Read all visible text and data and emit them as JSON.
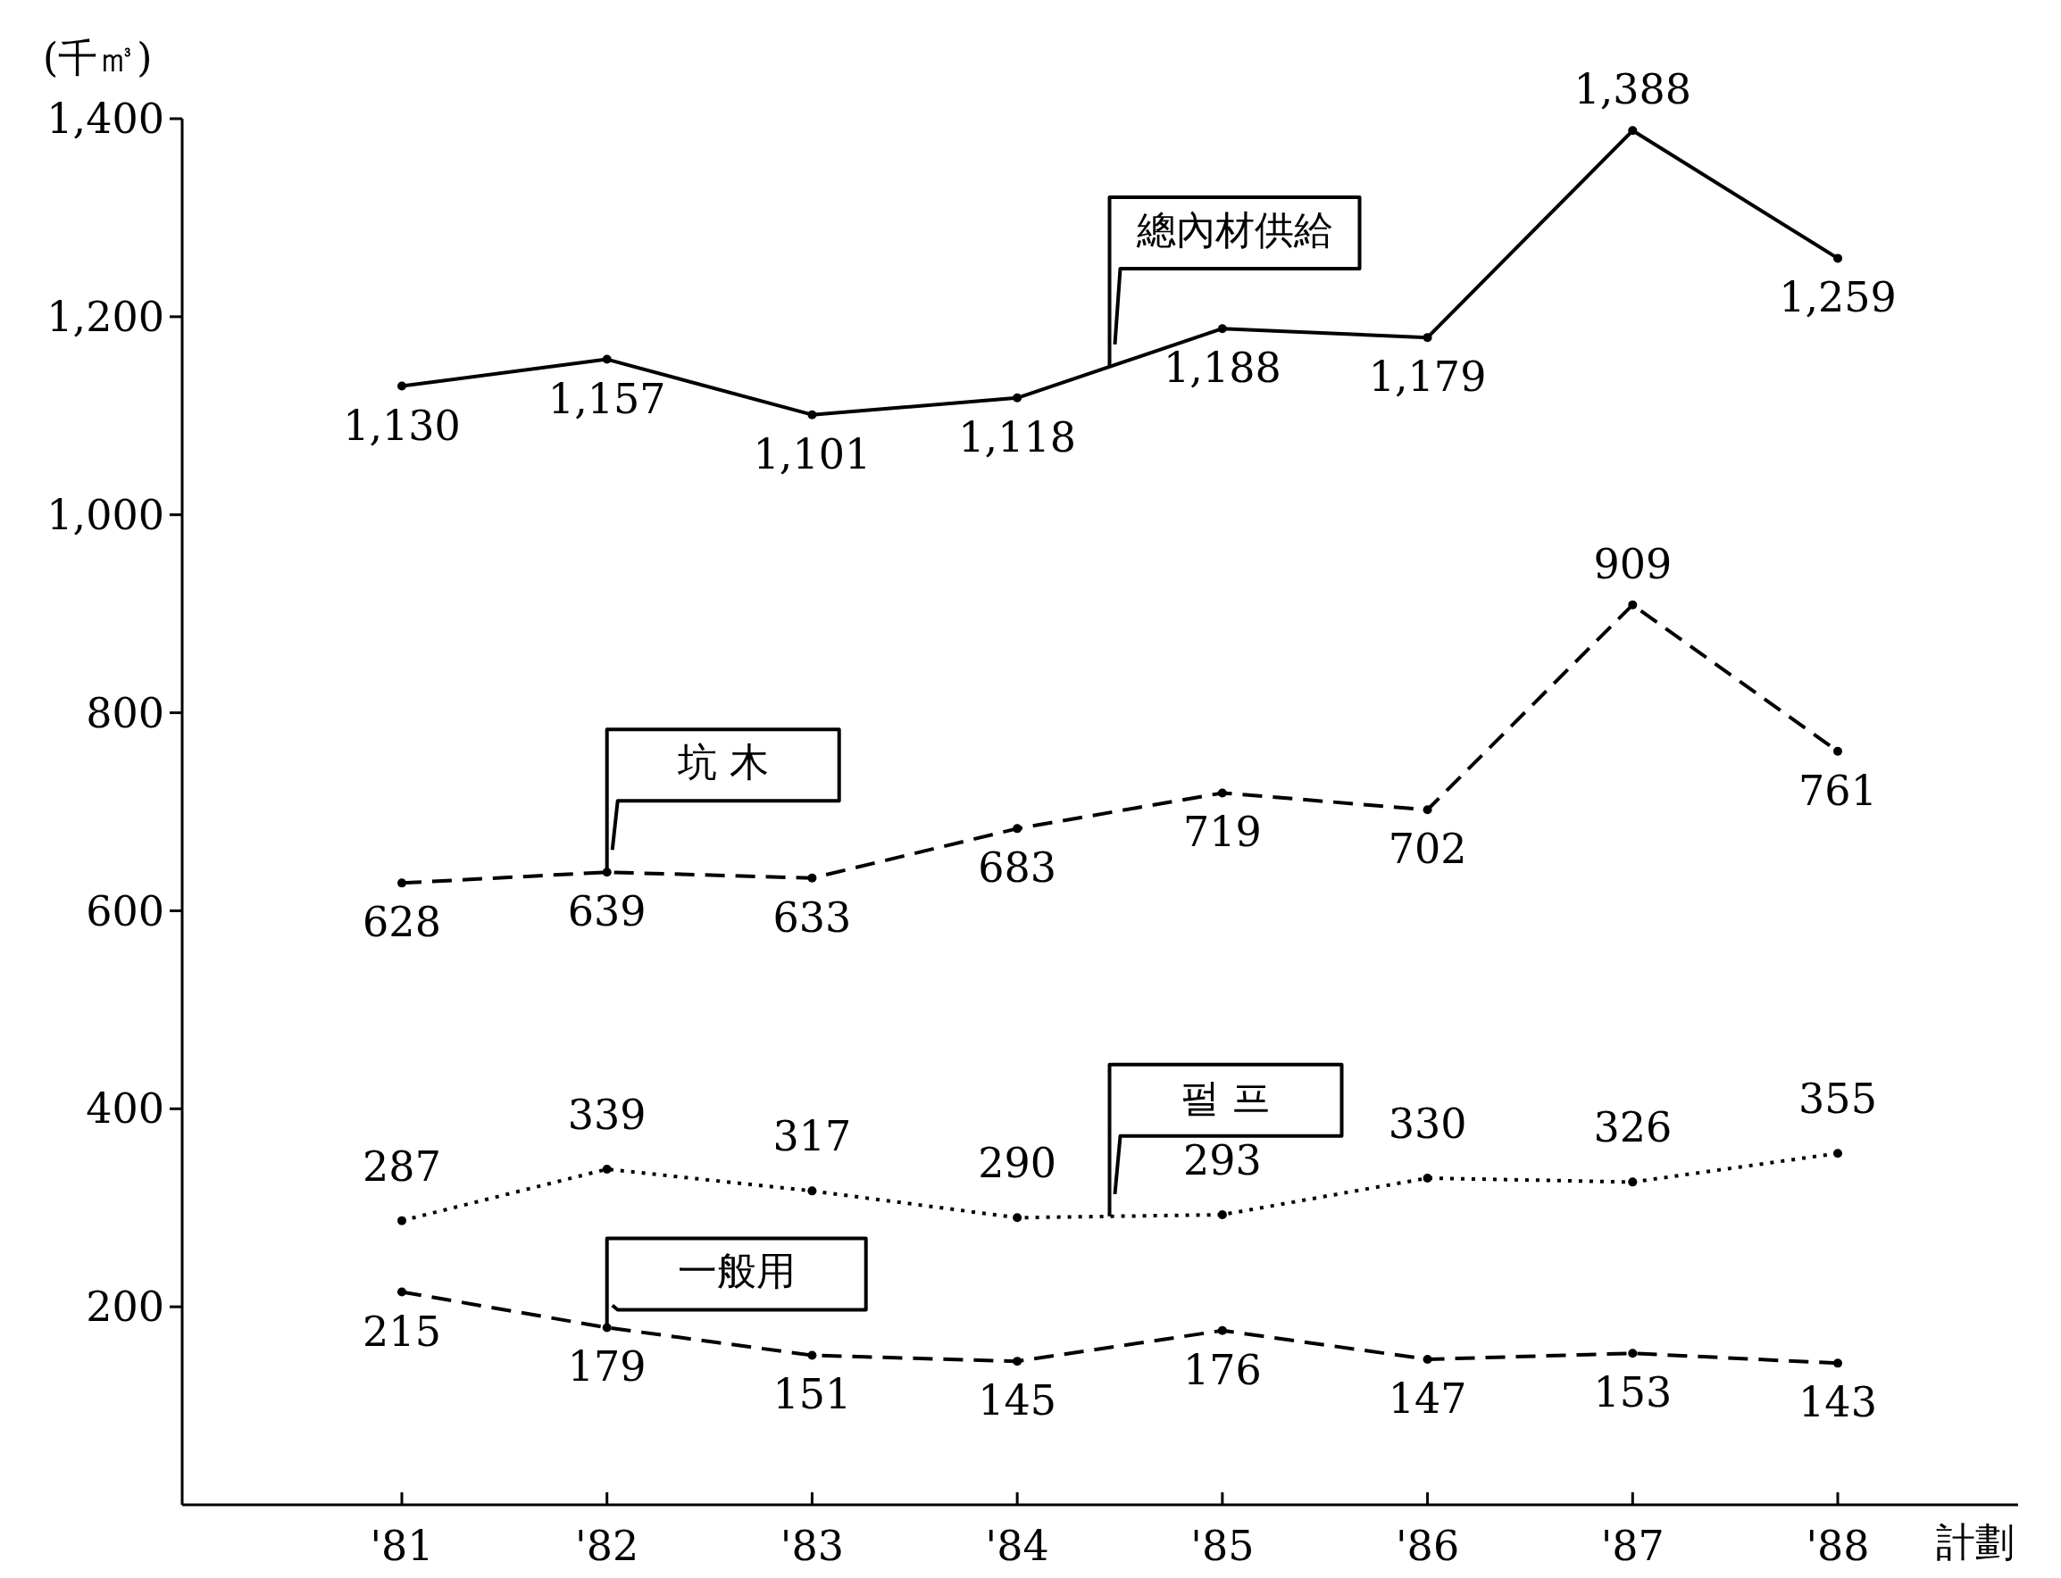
{
  "chart_data": {
    "type": "line",
    "ylabel": "(千㎥)",
    "xlabel": "計劃",
    "categories": [
      "'81",
      "'82",
      "'83",
      "'84",
      "'85",
      "'86",
      "'87",
      "'88"
    ],
    "ylim": [
      0,
      1400
    ],
    "yticks": [
      200,
      400,
      600,
      800,
      {
        "value": 1000,
        "label": "1,000"
      },
      {
        "value": 1200,
        "label": "1,200"
      },
      {
        "value": 1400,
        "label": "1,400"
      }
    ],
    "series": [
      {
        "name": "總內材供給",
        "color": "#000000",
        "line_style": "solid",
        "values": [
          1130,
          1157,
          1101,
          1118,
          1188,
          1179,
          1388,
          1259
        ],
        "value_labels": [
          "1,130",
          "1,157",
          "1,101",
          "1,118",
          "1,188",
          "1,179",
          "1,388",
          "1,259"
        ]
      },
      {
        "name": "坑 木",
        "color": "#000000",
        "line_style": "dashed",
        "values": [
          628,
          639,
          633,
          683,
          719,
          702,
          909,
          761
        ],
        "value_labels": [
          "628",
          "639",
          "633",
          "683",
          "719",
          "702",
          "909",
          "761"
        ]
      },
      {
        "name": "펄 프",
        "color": "#000000",
        "line_style": "dotted",
        "values": [
          287,
          339,
          317,
          290,
          293,
          330,
          326,
          355
        ],
        "value_labels": [
          "287",
          "339",
          "317",
          "290",
          "293",
          "330",
          "326",
          "355"
        ]
      },
      {
        "name": "一般用",
        "color": "#000000",
        "line_style": "dashed",
        "values": [
          215,
          179,
          151,
          145,
          176,
          147,
          153,
          143
        ],
        "value_labels": [
          "215",
          "179",
          "151",
          "145",
          "176",
          "147",
          "153",
          "143"
        ]
      }
    ],
    "marker": "circle",
    "grid": false
  }
}
